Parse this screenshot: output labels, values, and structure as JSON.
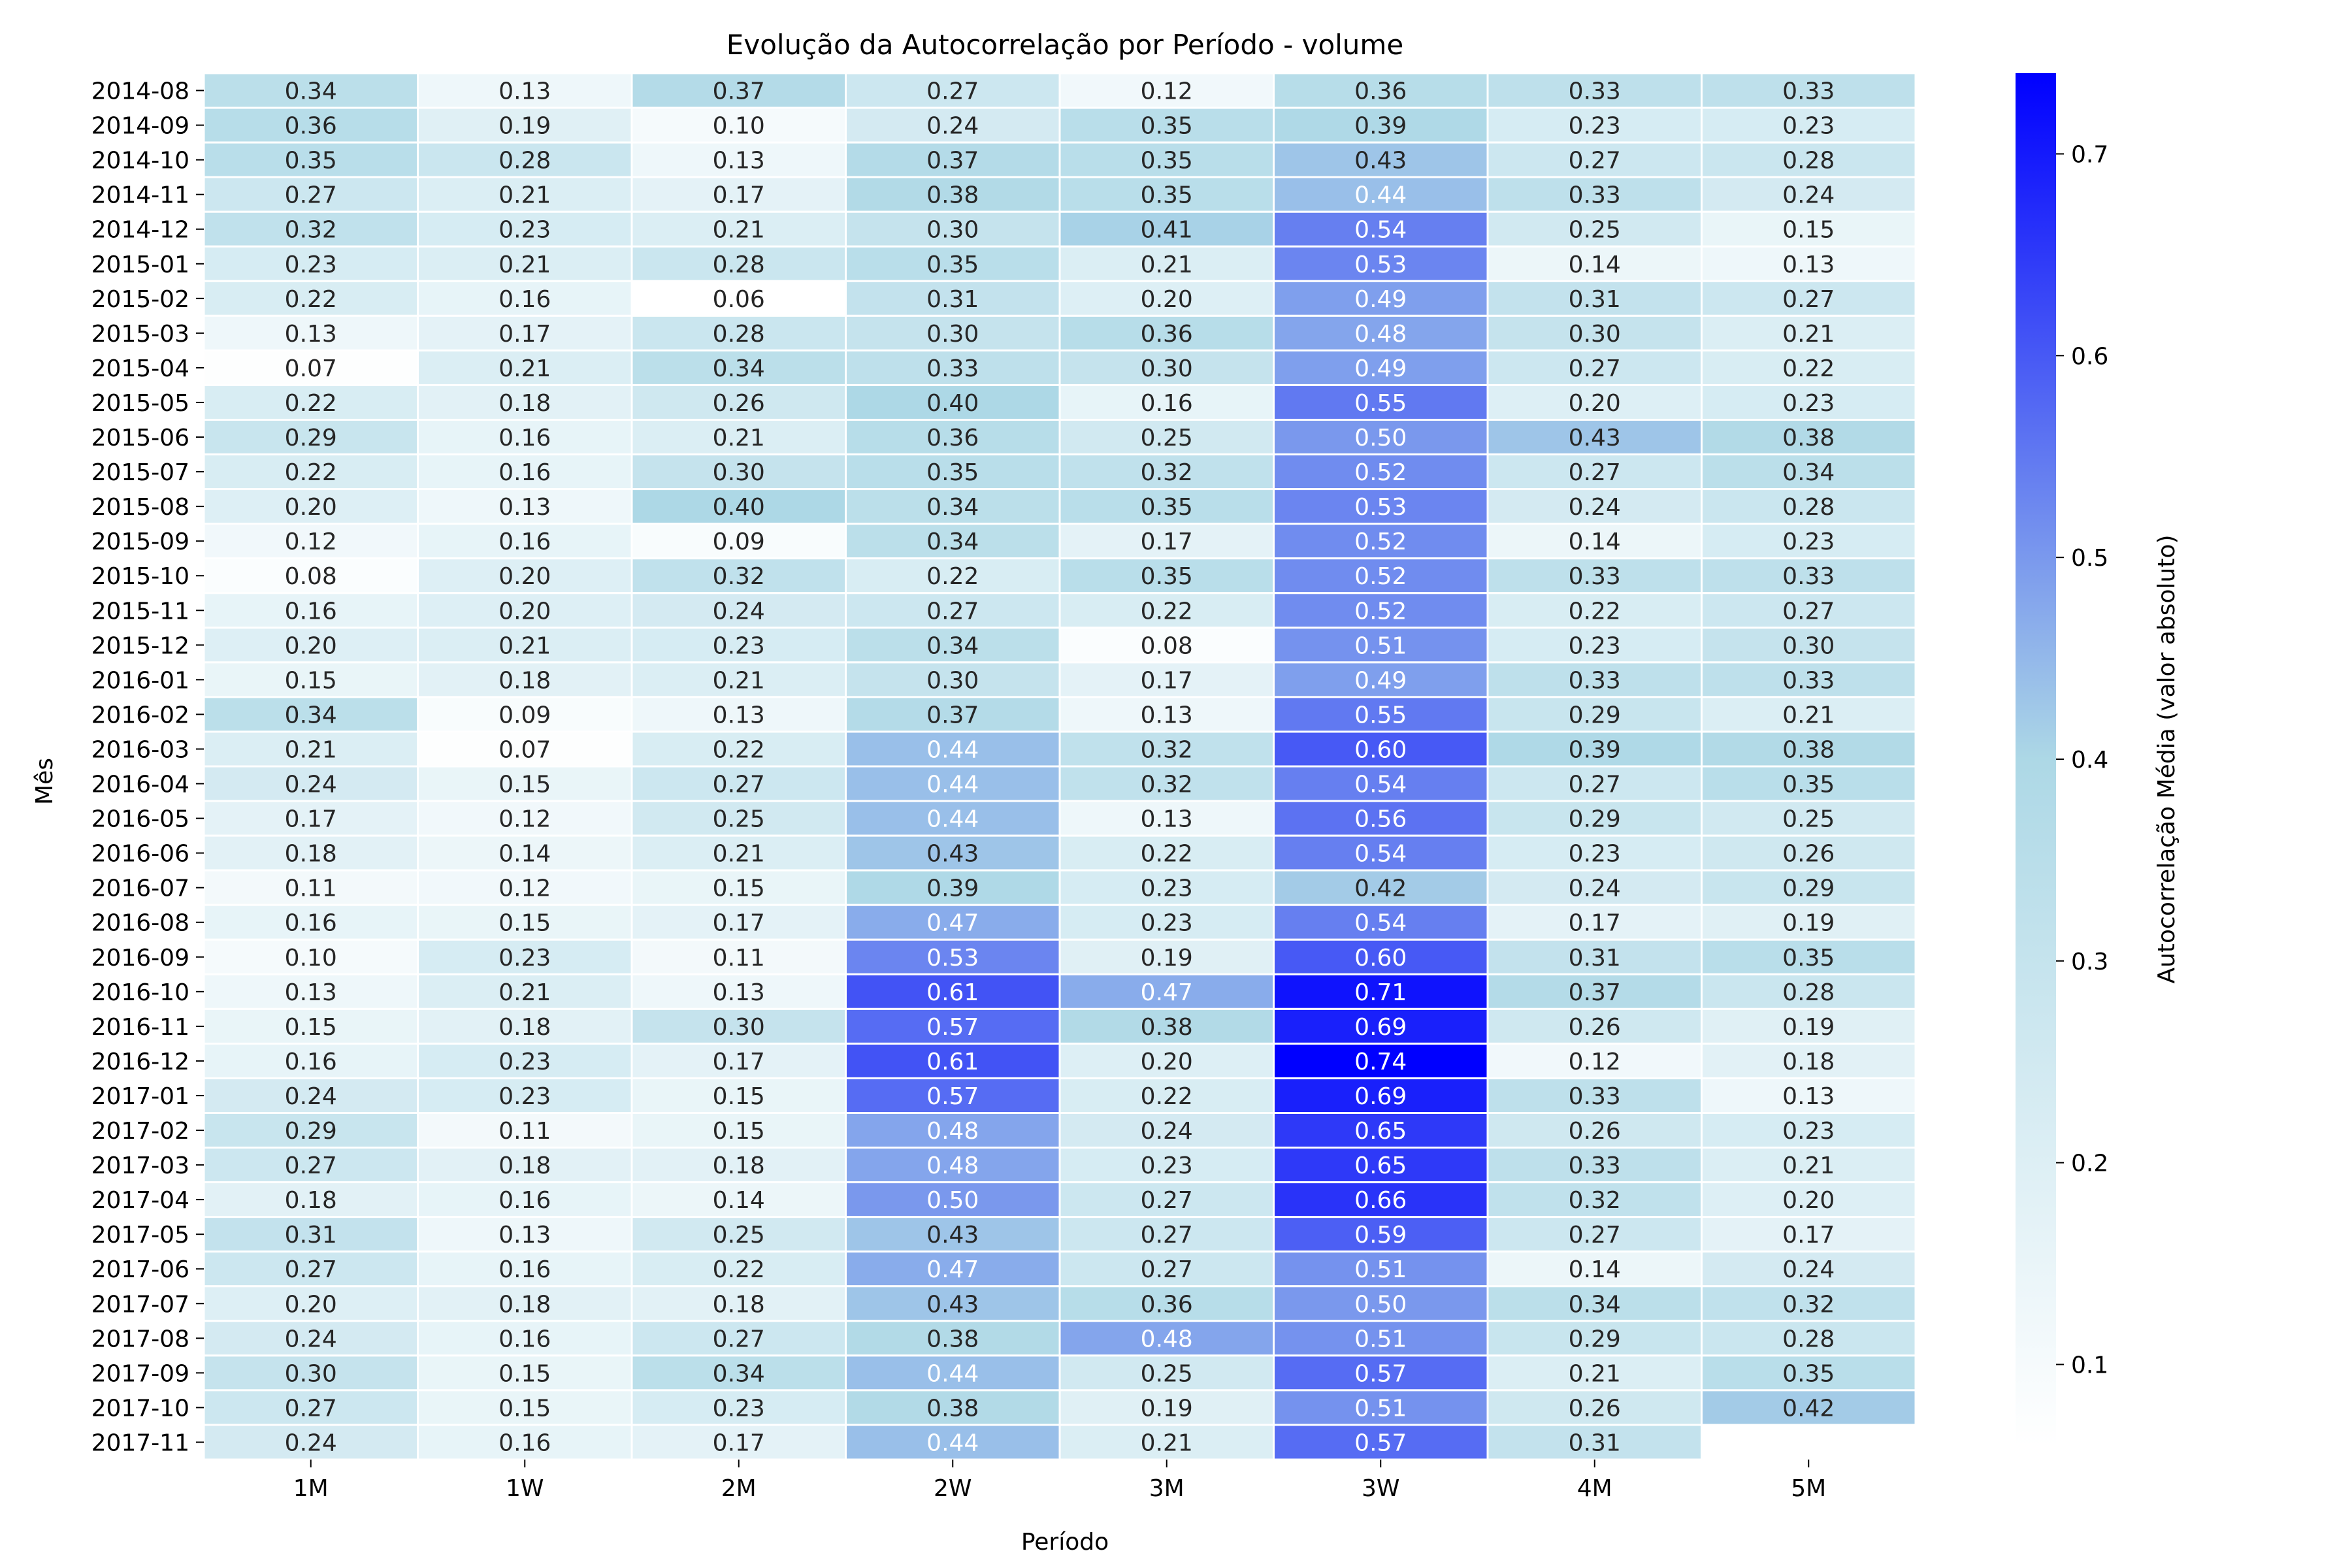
{
  "chart_data": {
    "type": "heatmap",
    "title": "Evolução da Autocorrelação por Período - volume",
    "xlabel": "Período",
    "ylabel": "Mês",
    "colorbar_label": "Autocorrelação Média (valor absoluto)",
    "colorbar_ticks": [
      "0.1",
      "0.2",
      "0.3",
      "0.4",
      "0.5",
      "0.6",
      "0.7"
    ],
    "color_range": [
      0.06,
      0.74
    ],
    "colormap": [
      "#ffffff",
      "#add8e6",
      "#0000ff"
    ],
    "columns": [
      "1M",
      "1W",
      "2M",
      "2W",
      "3M",
      "3W",
      "4M",
      "5M"
    ],
    "rows": [
      "2014-08",
      "2014-09",
      "2014-10",
      "2014-11",
      "2014-12",
      "2015-01",
      "2015-02",
      "2015-03",
      "2015-04",
      "2015-05",
      "2015-06",
      "2015-07",
      "2015-08",
      "2015-09",
      "2015-10",
      "2015-11",
      "2015-12",
      "2016-01",
      "2016-02",
      "2016-03",
      "2016-04",
      "2016-05",
      "2016-06",
      "2016-07",
      "2016-08",
      "2016-09",
      "2016-10",
      "2016-11",
      "2016-12",
      "2017-01",
      "2017-02",
      "2017-03",
      "2017-04",
      "2017-05",
      "2017-06",
      "2017-07",
      "2017-08",
      "2017-09",
      "2017-10",
      "2017-11"
    ],
    "values": [
      [
        0.34,
        0.13,
        0.37,
        0.27,
        0.12,
        0.36,
        0.33,
        0.33
      ],
      [
        0.36,
        0.19,
        0.1,
        0.24,
        0.35,
        0.39,
        0.23,
        0.23
      ],
      [
        0.35,
        0.28,
        0.13,
        0.37,
        0.35,
        0.43,
        0.27,
        0.28
      ],
      [
        0.27,
        0.21,
        0.17,
        0.38,
        0.35,
        0.44,
        0.33,
        0.24
      ],
      [
        0.32,
        0.23,
        0.21,
        0.3,
        0.41,
        0.54,
        0.25,
        0.15
      ],
      [
        0.23,
        0.21,
        0.28,
        0.35,
        0.21,
        0.53,
        0.14,
        0.13
      ],
      [
        0.22,
        0.16,
        0.06,
        0.31,
        0.2,
        0.49,
        0.31,
        0.27
      ],
      [
        0.13,
        0.17,
        0.28,
        0.3,
        0.36,
        0.48,
        0.3,
        0.21
      ],
      [
        0.07,
        0.21,
        0.34,
        0.33,
        0.3,
        0.49,
        0.27,
        0.22
      ],
      [
        0.22,
        0.18,
        0.26,
        0.4,
        0.16,
        0.55,
        0.2,
        0.23
      ],
      [
        0.29,
        0.16,
        0.21,
        0.36,
        0.25,
        0.5,
        0.43,
        0.38
      ],
      [
        0.22,
        0.16,
        0.3,
        0.35,
        0.32,
        0.52,
        0.27,
        0.34
      ],
      [
        0.2,
        0.13,
        0.4,
        0.34,
        0.35,
        0.53,
        0.24,
        0.28
      ],
      [
        0.12,
        0.16,
        0.09,
        0.34,
        0.17,
        0.52,
        0.14,
        0.23
      ],
      [
        0.08,
        0.2,
        0.32,
        0.22,
        0.35,
        0.52,
        0.33,
        0.33
      ],
      [
        0.16,
        0.2,
        0.24,
        0.27,
        0.22,
        0.52,
        0.22,
        0.27
      ],
      [
        0.2,
        0.21,
        0.23,
        0.34,
        0.08,
        0.51,
        0.23,
        0.3
      ],
      [
        0.15,
        0.18,
        0.21,
        0.3,
        0.17,
        0.49,
        0.33,
        0.33
      ],
      [
        0.34,
        0.09,
        0.13,
        0.37,
        0.13,
        0.55,
        0.29,
        0.21
      ],
      [
        0.21,
        0.07,
        0.22,
        0.44,
        0.32,
        0.6,
        0.39,
        0.38
      ],
      [
        0.24,
        0.15,
        0.27,
        0.44,
        0.32,
        0.54,
        0.27,
        0.35
      ],
      [
        0.17,
        0.12,
        0.25,
        0.44,
        0.13,
        0.56,
        0.29,
        0.25
      ],
      [
        0.18,
        0.14,
        0.21,
        0.43,
        0.22,
        0.54,
        0.23,
        0.26
      ],
      [
        0.11,
        0.12,
        0.15,
        0.39,
        0.23,
        0.42,
        0.24,
        0.29
      ],
      [
        0.16,
        0.15,
        0.17,
        0.47,
        0.23,
        0.54,
        0.17,
        0.19
      ],
      [
        0.1,
        0.23,
        0.11,
        0.53,
        0.19,
        0.6,
        0.31,
        0.35
      ],
      [
        0.13,
        0.21,
        0.13,
        0.61,
        0.47,
        0.71,
        0.37,
        0.28
      ],
      [
        0.15,
        0.18,
        0.3,
        0.57,
        0.38,
        0.69,
        0.26,
        0.19
      ],
      [
        0.16,
        0.23,
        0.17,
        0.61,
        0.2,
        0.74,
        0.12,
        0.18
      ],
      [
        0.24,
        0.23,
        0.15,
        0.57,
        0.22,
        0.69,
        0.33,
        0.13
      ],
      [
        0.29,
        0.11,
        0.15,
        0.48,
        0.24,
        0.65,
        0.26,
        0.23
      ],
      [
        0.27,
        0.18,
        0.18,
        0.48,
        0.23,
        0.65,
        0.33,
        0.21
      ],
      [
        0.18,
        0.16,
        0.14,
        0.5,
        0.27,
        0.66,
        0.32,
        0.2
      ],
      [
        0.31,
        0.13,
        0.25,
        0.43,
        0.27,
        0.59,
        0.27,
        0.17
      ],
      [
        0.27,
        0.16,
        0.22,
        0.47,
        0.27,
        0.51,
        0.14,
        0.24
      ],
      [
        0.2,
        0.18,
        0.18,
        0.43,
        0.36,
        0.5,
        0.34,
        0.32
      ],
      [
        0.24,
        0.16,
        0.27,
        0.38,
        0.48,
        0.51,
        0.29,
        0.28
      ],
      [
        0.3,
        0.15,
        0.34,
        0.44,
        0.25,
        0.57,
        0.21,
        0.35
      ],
      [
        0.27,
        0.15,
        0.23,
        0.38,
        0.19,
        0.51,
        0.26,
        0.42
      ],
      [
        0.24,
        0.16,
        0.17,
        0.44,
        0.21,
        0.57,
        0.31,
        null
      ]
    ]
  }
}
